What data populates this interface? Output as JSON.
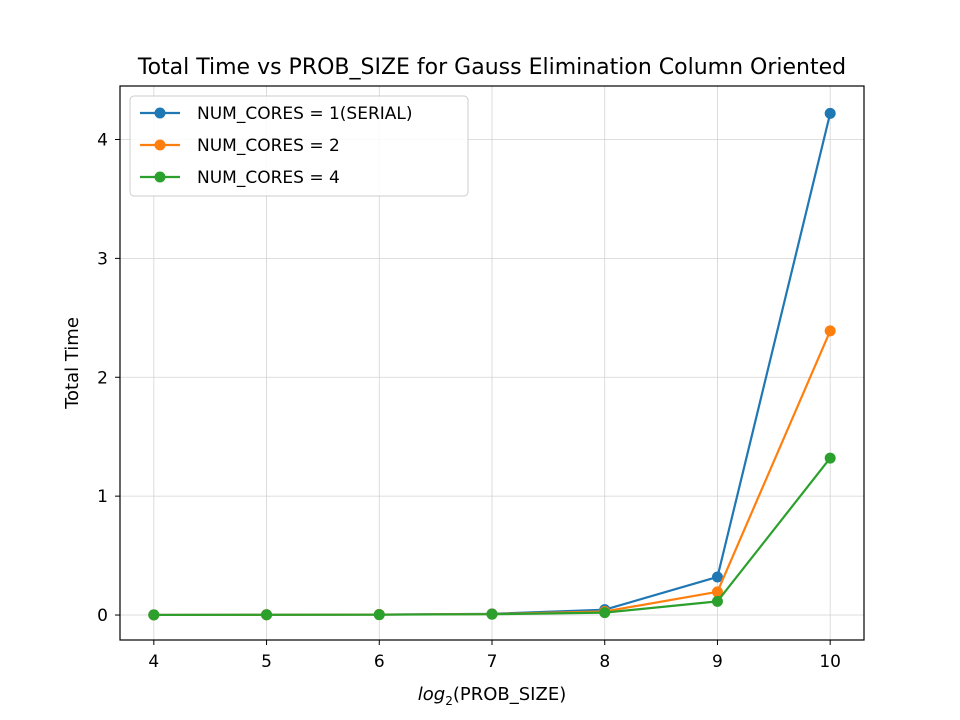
{
  "chart_data": {
    "type": "line",
    "title": "Total Time vs PROB_SIZE for Gauss Elimination Column Oriented",
    "xlabel_main": "log",
    "xlabel_sub": "2",
    "xlabel_rest": "(PROB_SIZE)",
    "ylabel": "Total Time",
    "x": [
      4,
      5,
      6,
      7,
      8,
      9,
      10
    ],
    "xlim": [
      3.7,
      10.3
    ],
    "ylim": [
      -0.21,
      4.45
    ],
    "xticks": [
      4,
      5,
      6,
      7,
      8,
      9,
      10
    ],
    "yticks": [
      0,
      1,
      2,
      3,
      4
    ],
    "grid": true,
    "legend_position": "top-left",
    "series": [
      {
        "name": "NUM_CORES = 1(SERIAL)",
        "color": "#1f77b4",
        "values": [
          0.001,
          0.002,
          0.004,
          0.01,
          0.045,
          0.32,
          4.22
        ]
      },
      {
        "name": "NUM_CORES = 2",
        "color": "#ff7f0e",
        "values": [
          0.001,
          0.002,
          0.004,
          0.008,
          0.03,
          0.195,
          2.39
        ]
      },
      {
        "name": "NUM_CORES = 4",
        "color": "#2ca02c",
        "values": [
          0.001,
          0.002,
          0.003,
          0.007,
          0.02,
          0.115,
          1.32
        ]
      }
    ]
  }
}
